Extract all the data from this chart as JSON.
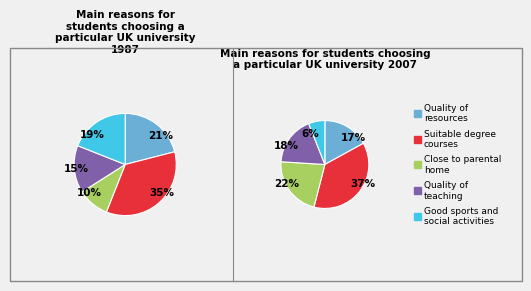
{
  "chart1": {
    "title": "Main reasons for\nstudents choosing a\nparticular UK university\n1987",
    "values": [
      21,
      35,
      10,
      15,
      19
    ],
    "labels": [
      "21%",
      "35%",
      "10%",
      "15%",
      "19%"
    ],
    "colors": [
      "#6BAED6",
      "#E8303A",
      "#A8D060",
      "#8060A8",
      "#40C8E8"
    ],
    "startangle": 90
  },
  "chart2": {
    "title": "Main reasons for students choosing\na particular UK university 2007",
    "values": [
      17,
      37,
      22,
      18,
      6
    ],
    "labels": [
      "17%",
      "37%",
      "22%",
      "18%",
      "6%"
    ],
    "colors": [
      "#6BAED6",
      "#E8303A",
      "#A8D060",
      "#8060A8",
      "#40C8E8"
    ],
    "startangle": 90
  },
  "legend_labels": [
    "Quality of\nresources",
    "Suitable degree\ncourses",
    "Close to parental\nhome",
    "Quality of\nteaching",
    "Good sports and\nsocial activities"
  ],
  "legend_colors": [
    "#6BAED6",
    "#E8303A",
    "#A8D060",
    "#8060A8",
    "#40C8E8"
  ],
  "bg_color": "#F0F0F0",
  "title_fontsize": 7.5,
  "label_fontsize": 7.5,
  "legend_fontsize": 6.5
}
